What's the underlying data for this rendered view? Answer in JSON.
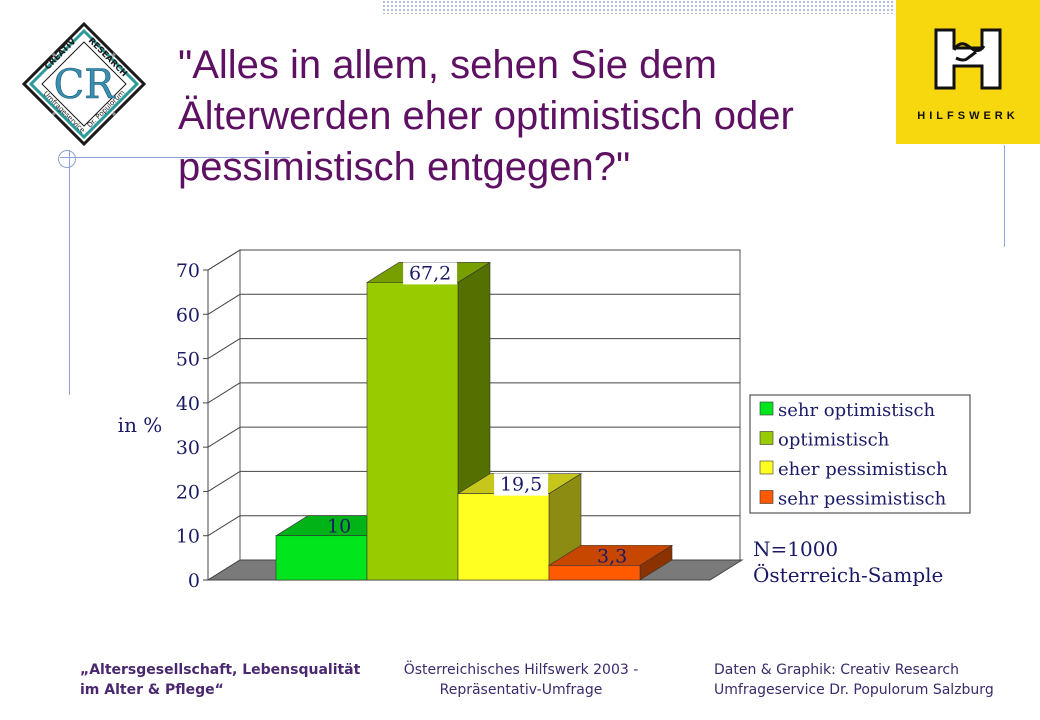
{
  "title": "\"Alles in allem, sehen Sie dem Älterwerden eher optimistisch oder pessimistisch entgegen?\"",
  "logo_left": {
    "top_word": "CREATIV",
    "top_word_right": "RESEARCH",
    "bottom_left": "Umfrageservice",
    "bottom_right": "Dr. Populorum",
    "monogram": "CR"
  },
  "logo_right": {
    "text": "HILFSWERK"
  },
  "chart_data": {
    "type": "bar",
    "categories": [
      "sehr optimistisch",
      "optimistisch",
      "eher pessimistisch",
      "sehr pessimistisch"
    ],
    "values": [
      10,
      67.2,
      19.5,
      3.3
    ],
    "value_labels": [
      "10",
      "67,2",
      "19,5",
      "3,3"
    ],
    "ylabel": "in %",
    "ylim": [
      0,
      70
    ],
    "yticks": [
      "0",
      "10",
      "20",
      "30",
      "40",
      "50",
      "60",
      "70"
    ],
    "colors": [
      "#00e51c",
      "#99cc00",
      "#ffff22",
      "#ff5a00"
    ],
    "grid": true,
    "legend": "right",
    "legend_entries": [
      "sehr optimistisch",
      "optimistisch",
      "eher pessimistisch",
      "sehr pessimistisch"
    ],
    "annotations": [
      "N=1000",
      "Österreich-Sample"
    ]
  },
  "footer": {
    "left_line1": "„Altersgesellschaft, Lebensqualität",
    "left_line2": "im Alter & Pflege“",
    "mid_line1": "Österreichisches Hilfswerk 2003 -",
    "mid_line2": "Repräsentativ-Umfrage",
    "right_line1": "Daten & Graphik: Creativ Research",
    "right_line2": "Umfrageservice Dr. Populorum Salzburg"
  }
}
